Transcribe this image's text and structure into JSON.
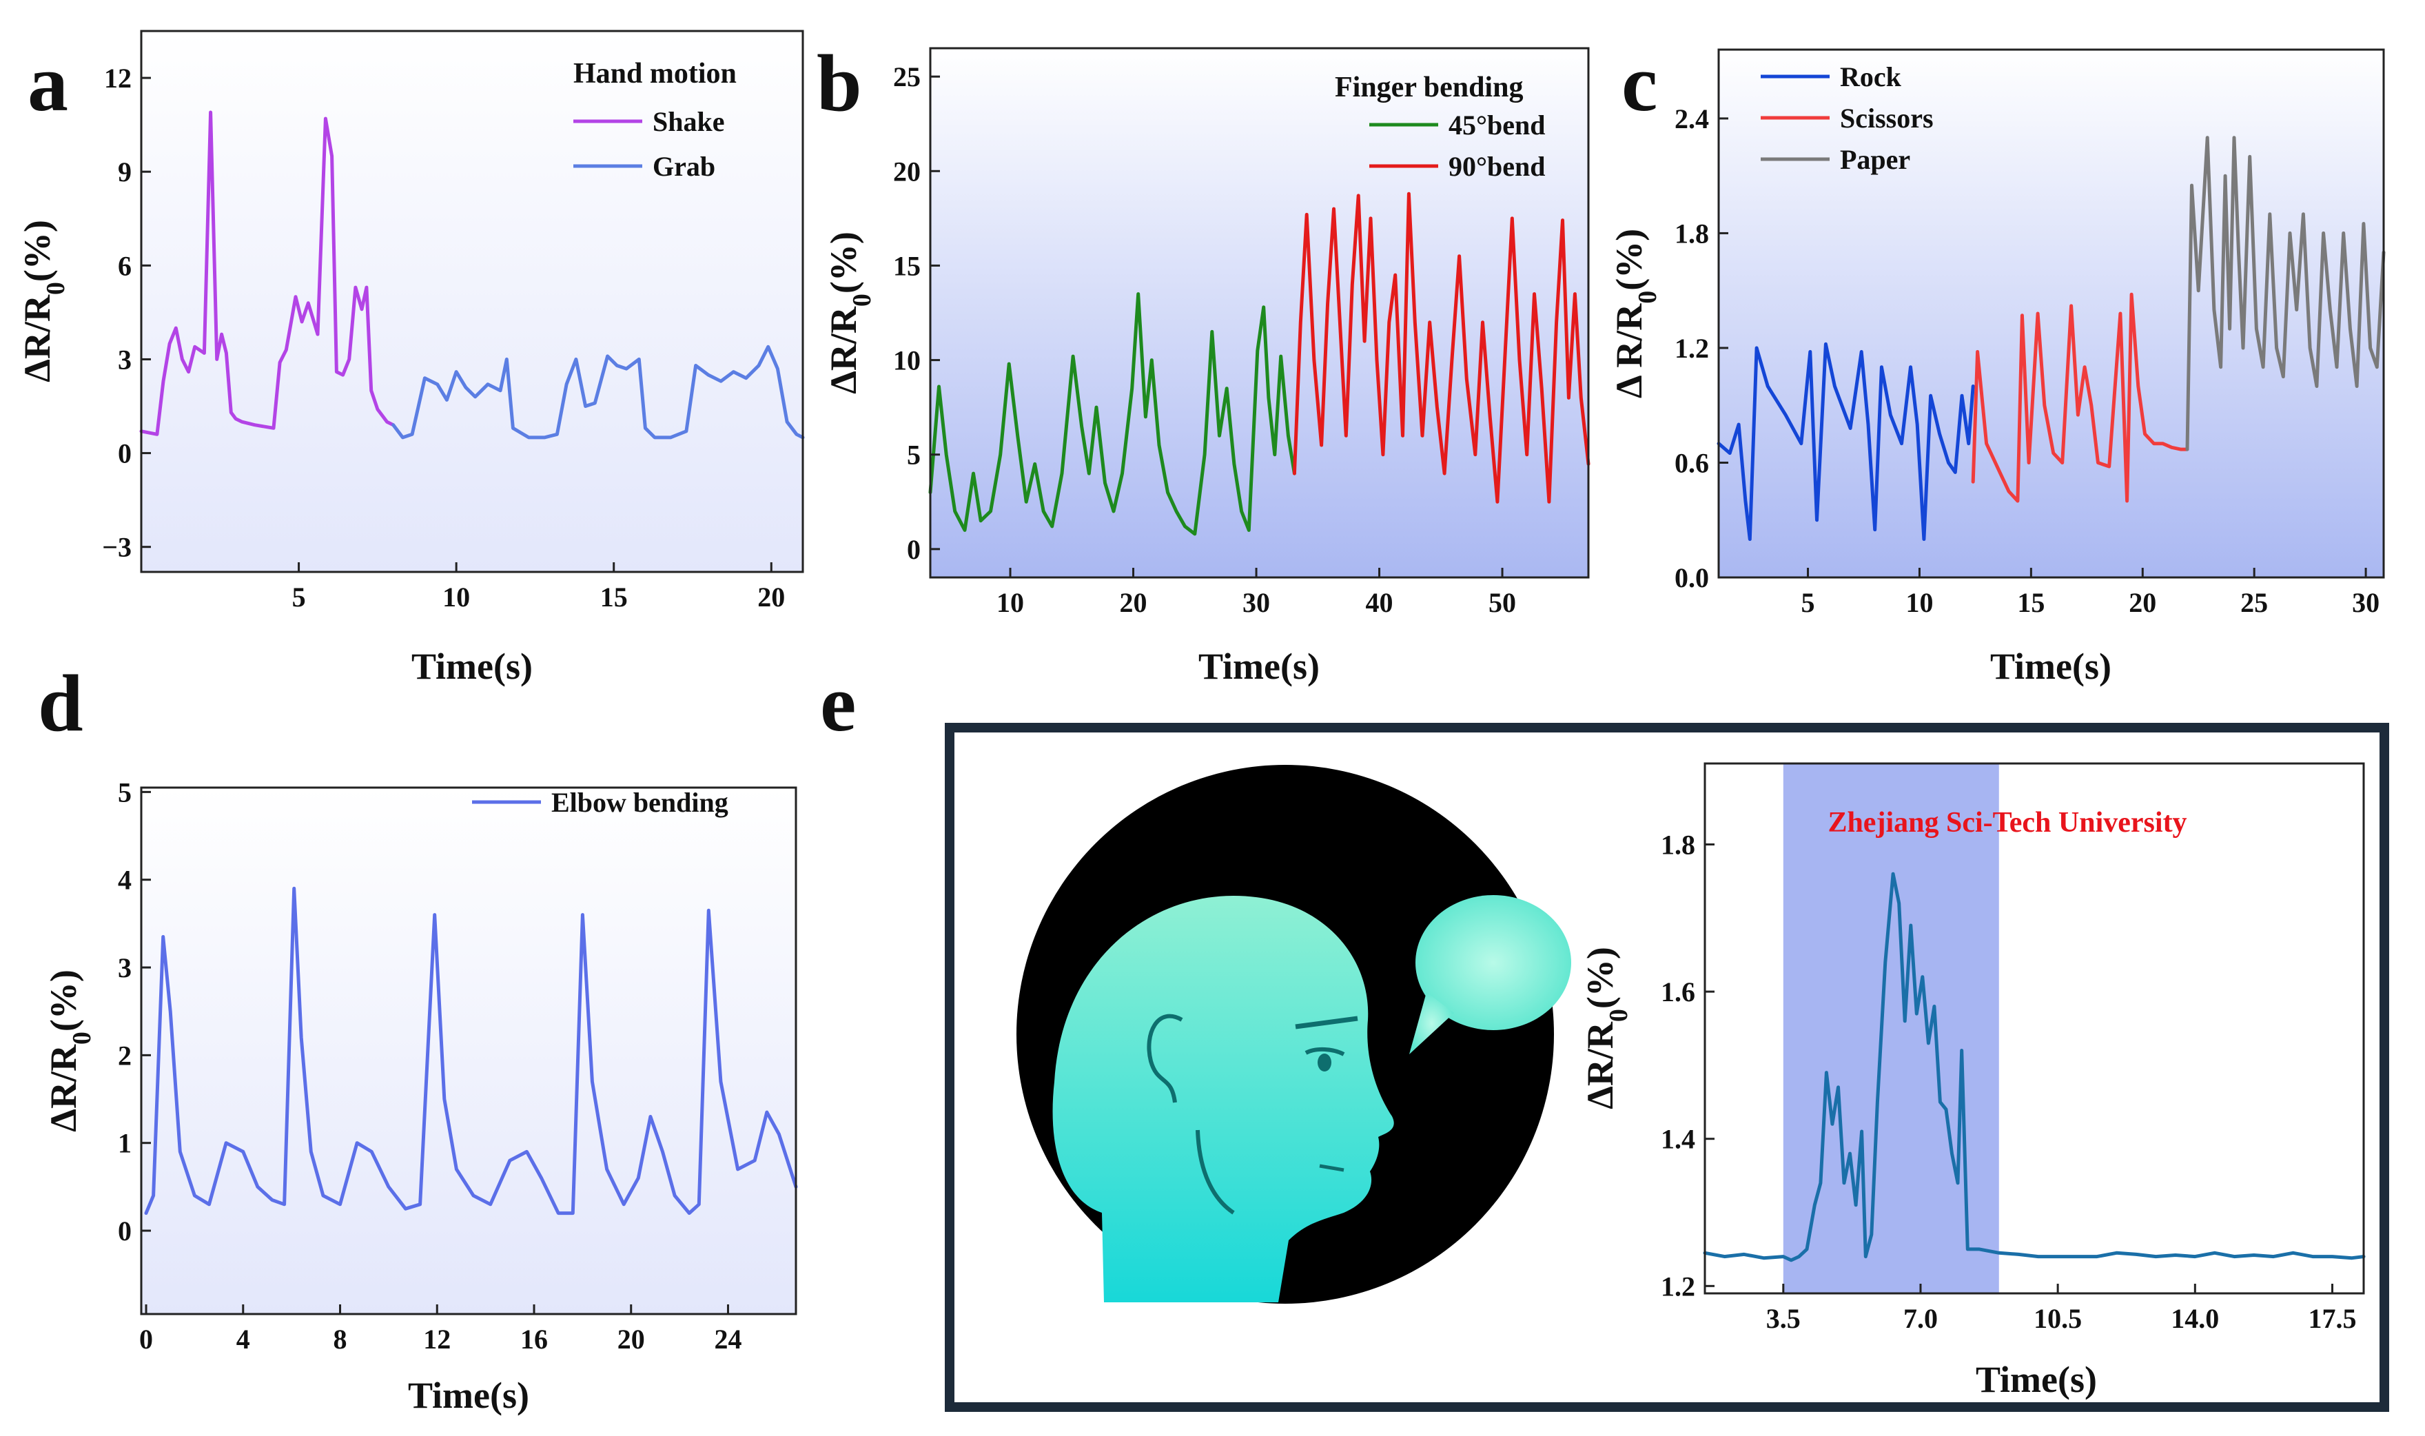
{
  "colors": {
    "shake": "#b344e6",
    "grab": "#5b7ee3",
    "bend45": "#1e8a1e",
    "bend90": "#e41b1b",
    "rock": "#1446d6",
    "scissors": "#f03c3c",
    "paper": "#7a7a7a",
    "elbow": "#5b6fe8",
    "speech": "#1a6fa8",
    "highlight": "#98a8f0",
    "frame_e": "#1d2b3a",
    "annotation": "#e8141c"
  },
  "chart_data": [
    {
      "id": "a",
      "letter": "a",
      "type": "line",
      "xlabel": "Time(s)",
      "ylabel": "ΔR/R0(%)",
      "xlim": [
        0,
        21
      ],
      "ylim": [
        -3.8,
        13.5
      ],
      "xticks": [
        5,
        10,
        15,
        20
      ],
      "yticks": [
        -3,
        0,
        3,
        6,
        9,
        12
      ],
      "ytick_labels": [
        "−3",
        "0",
        "3",
        "6",
        "9",
        "12"
      ],
      "legend_title": "Hand motion",
      "legend": [
        {
          "label": "Shake",
          "color_key": "shake"
        },
        {
          "label": "Grab",
          "color_key": "grab"
        }
      ],
      "series": [
        {
          "name": "Shake",
          "color_key": "shake",
          "x": [
            0,
            0.5,
            0.7,
            0.9,
            1.1,
            1.3,
            1.5,
            1.7,
            2.0,
            2.2,
            2.4,
            2.55,
            2.7,
            2.85,
            3.0,
            3.2,
            3.6,
            4.2,
            4.4,
            4.6,
            4.9,
            5.1,
            5.3,
            5.6,
            5.85,
            6.05,
            6.2,
            6.4,
            6.6,
            6.8,
            7.0,
            7.15,
            7.3,
            7.5,
            7.8,
            8.0
          ],
          "y": [
            0.7,
            0.6,
            2.3,
            3.5,
            4.0,
            3.0,
            2.6,
            3.4,
            3.2,
            10.9,
            3.0,
            3.8,
            3.2,
            1.3,
            1.1,
            1.0,
            0.9,
            0.8,
            2.9,
            3.3,
            5.0,
            4.2,
            4.8,
            3.8,
            10.7,
            9.5,
            2.6,
            2.5,
            3.0,
            5.3,
            4.6,
            5.3,
            2.0,
            1.4,
            1.0,
            0.9
          ]
        },
        {
          "name": "Grab",
          "color_key": "grab",
          "x": [
            8.0,
            8.3,
            8.6,
            9.0,
            9.4,
            9.7,
            10.0,
            10.3,
            10.6,
            11.0,
            11.4,
            11.6,
            11.8,
            12.3,
            12.8,
            13.2,
            13.5,
            13.8,
            14.1,
            14.4,
            14.8,
            15.1,
            15.4,
            15.8,
            16.0,
            16.3,
            16.8,
            17.3,
            17.6,
            18.0,
            18.4,
            18.8,
            19.2,
            19.6,
            19.9,
            20.2,
            20.5,
            20.8,
            21.0
          ],
          "y": [
            0.9,
            0.5,
            0.6,
            2.4,
            2.2,
            1.7,
            2.6,
            2.1,
            1.8,
            2.2,
            2.0,
            3.0,
            0.8,
            0.5,
            0.5,
            0.6,
            2.2,
            3.0,
            1.5,
            1.6,
            3.1,
            2.8,
            2.7,
            3.0,
            0.8,
            0.5,
            0.5,
            0.7,
            2.8,
            2.5,
            2.3,
            2.6,
            2.4,
            2.8,
            3.4,
            2.7,
            1.0,
            0.6,
            0.5
          ]
        }
      ]
    },
    {
      "id": "b",
      "letter": "b",
      "type": "line",
      "xlabel": "Time(s)",
      "ylabel": "ΔR/R0(%)",
      "xlim": [
        3.5,
        57
      ],
      "ylim": [
        -1.5,
        26.5
      ],
      "xticks": [
        10,
        20,
        30,
        40,
        50
      ],
      "yticks": [
        0,
        5,
        10,
        15,
        20,
        25
      ],
      "ytick_labels": [
        "0",
        "5",
        "10",
        "15",
        "20",
        "25"
      ],
      "legend_title": "Finger bending",
      "legend": [
        {
          "label": "45°bend",
          "color_key": "bend45"
        },
        {
          "label": "90°bend",
          "color_key": "bend90"
        }
      ],
      "series": [
        {
          "name": "45°bend",
          "color_key": "bend45",
          "x": [
            3.5,
            4.2,
            4.8,
            5.5,
            6.3,
            7.0,
            7.6,
            8.4,
            9.2,
            9.9,
            10.6,
            11.3,
            12.0,
            12.7,
            13.4,
            14.2,
            15.1,
            15.8,
            16.4,
            17.0,
            17.7,
            18.4,
            19.1,
            19.9,
            20.4,
            21.0,
            21.5,
            22.1,
            22.8,
            23.5,
            24.2,
            25.0,
            25.8,
            26.4,
            27.0,
            27.6,
            28.2,
            28.8,
            29.4,
            30.1,
            30.6,
            31.0,
            31.5,
            32.0,
            32.6,
            33.1
          ],
          "y": [
            3.0,
            8.6,
            5.0,
            2.0,
            1.0,
            4.0,
            1.5,
            2.0,
            5.0,
            9.8,
            6.0,
            2.5,
            4.5,
            2.0,
            1.2,
            4.0,
            10.2,
            6.5,
            4.0,
            7.5,
            3.5,
            2.0,
            4.0,
            8.5,
            13.5,
            7.0,
            10.0,
            5.5,
            3.0,
            2.0,
            1.2,
            0.8,
            5.0,
            11.5,
            6.0,
            8.5,
            4.5,
            2.0,
            1.0,
            10.5,
            12.8,
            8.0,
            5.0,
            10.2,
            6.0,
            4.0
          ]
        },
        {
          "name": "90°bend",
          "color_key": "bend90",
          "x": [
            33.1,
            33.6,
            34.1,
            34.7,
            35.3,
            35.8,
            36.3,
            36.8,
            37.3,
            37.8,
            38.3,
            38.8,
            39.3,
            39.8,
            40.3,
            40.8,
            41.3,
            41.9,
            42.4,
            42.9,
            43.5,
            44.1,
            44.7,
            45.3,
            45.9,
            46.5,
            47.1,
            47.8,
            48.4,
            49.0,
            49.6,
            50.2,
            50.8,
            51.4,
            52.0,
            52.6,
            53.2,
            53.8,
            54.4,
            54.9,
            55.4,
            55.9,
            56.4,
            57.0
          ],
          "y": [
            4.0,
            12.0,
            17.7,
            10.0,
            5.5,
            13.0,
            18.0,
            12.0,
            6.0,
            14.0,
            18.7,
            11.0,
            17.5,
            10.0,
            5.0,
            12.0,
            14.5,
            6.0,
            18.8,
            12.0,
            6.0,
            12.0,
            7.5,
            4.0,
            10.0,
            15.5,
            9.0,
            5.0,
            12.0,
            7.0,
            2.5,
            10.0,
            17.5,
            10.0,
            5.0,
            13.5,
            8.5,
            2.5,
            12.0,
            17.4,
            8.0,
            13.5,
            8.0,
            4.5
          ]
        }
      ]
    },
    {
      "id": "c",
      "letter": "c",
      "type": "line",
      "xlabel": "Time(s)",
      "ylabel": "Δ R/R0(%)",
      "xlim": [
        1,
        30.8
      ],
      "ylim": [
        0,
        2.76
      ],
      "xticks": [
        5,
        10,
        15,
        20,
        25,
        30
      ],
      "yticks": [
        0,
        0.6,
        1.2,
        1.8,
        2.4
      ],
      "ytick_labels": [
        "0.0",
        "0.6",
        "1.2",
        "1.8",
        "2.4"
      ],
      "legend": [
        {
          "label": "Rock",
          "color_key": "rock"
        },
        {
          "label": "Scissors",
          "color_key": "scissors"
        },
        {
          "label": "Paper",
          "color_key": "paper"
        }
      ],
      "series": [
        {
          "name": "Rock",
          "color_key": "rock",
          "x": [
            1.0,
            1.5,
            1.9,
            2.2,
            2.4,
            2.7,
            3.2,
            4.0,
            4.7,
            5.1,
            5.4,
            5.8,
            6.2,
            6.9,
            7.4,
            7.7,
            8.0,
            8.3,
            8.7,
            9.2,
            9.6,
            9.9,
            10.2,
            10.5,
            10.9,
            11.3,
            11.6,
            11.9,
            12.2,
            12.4
          ],
          "y": [
            0.7,
            0.65,
            0.8,
            0.4,
            0.2,
            1.2,
            1.0,
            0.85,
            0.7,
            1.18,
            0.3,
            1.22,
            1.0,
            0.78,
            1.18,
            0.8,
            0.25,
            1.1,
            0.85,
            0.7,
            1.1,
            0.8,
            0.2,
            0.95,
            0.75,
            0.6,
            0.55,
            0.95,
            0.7,
            1.0
          ]
        },
        {
          "name": "Scissors",
          "color_key": "scissors",
          "x": [
            12.4,
            12.6,
            13.0,
            13.6,
            14.0,
            14.4,
            14.6,
            14.9,
            15.3,
            15.6,
            16.0,
            16.4,
            16.8,
            17.1,
            17.4,
            17.7,
            18.0,
            18.5,
            19.0,
            19.3,
            19.5,
            19.8,
            20.1,
            20.5,
            20.9,
            21.3,
            21.7,
            22.0
          ],
          "y": [
            0.5,
            1.18,
            0.7,
            0.55,
            0.45,
            0.4,
            1.37,
            0.6,
            1.38,
            0.9,
            0.65,
            0.6,
            1.42,
            0.85,
            1.1,
            0.9,
            0.6,
            0.58,
            1.38,
            0.4,
            1.48,
            1.0,
            0.75,
            0.7,
            0.7,
            0.68,
            0.67,
            0.67
          ]
        },
        {
          "name": "Paper",
          "color_key": "paper",
          "x": [
            22.0,
            22.2,
            22.5,
            22.9,
            23.2,
            23.5,
            23.7,
            23.9,
            24.1,
            24.3,
            24.5,
            24.8,
            25.1,
            25.4,
            25.7,
            26.0,
            26.3,
            26.6,
            26.9,
            27.2,
            27.5,
            27.8,
            28.1,
            28.4,
            28.7,
            29.0,
            29.3,
            29.6,
            29.9,
            30.2,
            30.5,
            30.8
          ],
          "y": [
            0.67,
            2.05,
            1.5,
            2.3,
            1.4,
            1.1,
            2.1,
            1.3,
            2.3,
            1.7,
            1.2,
            2.2,
            1.3,
            1.1,
            1.9,
            1.2,
            1.05,
            1.8,
            1.4,
            1.9,
            1.2,
            1.0,
            1.8,
            1.4,
            1.1,
            1.8,
            1.3,
            1.0,
            1.85,
            1.2,
            1.1,
            1.7
          ]
        }
      ]
    },
    {
      "id": "d",
      "letter": "d",
      "type": "line",
      "xlabel": "Time(s)",
      "ylabel": "ΔR/R0(%)",
      "xlim": [
        -0.2,
        26.8
      ],
      "ylim": [
        -0.95,
        5.05
      ],
      "xticks": [
        0,
        4,
        8,
        12,
        16,
        20,
        24
      ],
      "yticks": [
        0,
        1,
        2,
        3,
        4,
        5
      ],
      "ytick_labels": [
        "0",
        "1",
        "2",
        "3",
        "4",
        "5"
      ],
      "legend": [
        {
          "label": "Elbow bending",
          "color_key": "elbow"
        }
      ],
      "series": [
        {
          "name": "Elbow bending",
          "color_key": "elbow",
          "x": [
            0.0,
            0.3,
            0.7,
            1.0,
            1.4,
            2.0,
            2.6,
            3.3,
            4.0,
            4.6,
            5.2,
            5.7,
            6.1,
            6.4,
            6.8,
            7.3,
            8.0,
            8.7,
            9.3,
            10.0,
            10.7,
            11.3,
            11.9,
            12.3,
            12.8,
            13.5,
            14.2,
            15.0,
            15.7,
            16.3,
            17.0,
            17.6,
            18.0,
            18.4,
            19.0,
            19.7,
            20.3,
            20.8,
            21.3,
            21.8,
            22.4,
            22.8,
            23.2,
            23.7,
            24.4,
            25.1,
            25.6,
            26.1,
            26.8
          ],
          "y": [
            0.2,
            0.4,
            3.35,
            2.5,
            0.9,
            0.4,
            0.3,
            1.0,
            0.9,
            0.5,
            0.35,
            0.3,
            3.9,
            2.2,
            0.9,
            0.4,
            0.3,
            1.0,
            0.9,
            0.5,
            0.25,
            0.3,
            3.6,
            1.5,
            0.7,
            0.4,
            0.3,
            0.8,
            0.9,
            0.6,
            0.2,
            0.2,
            3.6,
            1.7,
            0.7,
            0.3,
            0.6,
            1.3,
            0.9,
            0.4,
            0.2,
            0.3,
            3.65,
            1.7,
            0.7,
            0.8,
            1.35,
            1.1,
            0.5
          ]
        }
      ]
    },
    {
      "id": "e",
      "letter": "e",
      "type": "line",
      "xlabel": "Time(s)",
      "ylabel": "ΔR/R0(%)",
      "xlim": [
        1.5,
        18.3
      ],
      "ylim": [
        1.19,
        1.91
      ],
      "xticks": [
        3.5,
        7.0,
        10.5,
        14.0,
        17.5
      ],
      "xtick_labels": [
        "3.5",
        "7.0",
        "10.5",
        "14.0",
        "17.5"
      ],
      "yticks": [
        1.2,
        1.4,
        1.6,
        1.8
      ],
      "ytick_labels": [
        "1.2",
        "1.4",
        "1.6",
        "1.8"
      ],
      "highlight_x": [
        3.5,
        9.0
      ],
      "annotation": "Zhejiang Sci-Tech University",
      "series": [
        {
          "name": "Speech",
          "color_key": "speech",
          "x": [
            1.5,
            2.0,
            2.5,
            3.0,
            3.5,
            3.7,
            3.9,
            4.1,
            4.3,
            4.45,
            4.6,
            4.75,
            4.9,
            5.05,
            5.2,
            5.35,
            5.5,
            5.6,
            5.75,
            5.9,
            6.1,
            6.3,
            6.45,
            6.6,
            6.75,
            6.9,
            7.05,
            7.2,
            7.35,
            7.5,
            7.65,
            7.8,
            7.95,
            8.05,
            8.2,
            8.5,
            9.0,
            9.5,
            10.0,
            10.5,
            11.0,
            11.5,
            12.0,
            12.5,
            13.0,
            13.5,
            14.0,
            14.5,
            15.0,
            15.5,
            16.0,
            16.5,
            17.0,
            17.5,
            18.0,
            18.3
          ],
          "y": [
            1.245,
            1.24,
            1.243,
            1.238,
            1.24,
            1.235,
            1.24,
            1.25,
            1.31,
            1.34,
            1.49,
            1.42,
            1.47,
            1.34,
            1.38,
            1.31,
            1.41,
            1.24,
            1.27,
            1.45,
            1.64,
            1.76,
            1.72,
            1.56,
            1.69,
            1.57,
            1.62,
            1.53,
            1.58,
            1.45,
            1.44,
            1.38,
            1.34,
            1.52,
            1.25,
            1.25,
            1.245,
            1.243,
            1.24,
            1.24,
            1.24,
            1.24,
            1.245,
            1.243,
            1.24,
            1.242,
            1.24,
            1.245,
            1.24,
            1.242,
            1.24,
            1.245,
            1.24,
            1.24,
            1.238,
            1.24
          ]
        }
      ]
    }
  ]
}
